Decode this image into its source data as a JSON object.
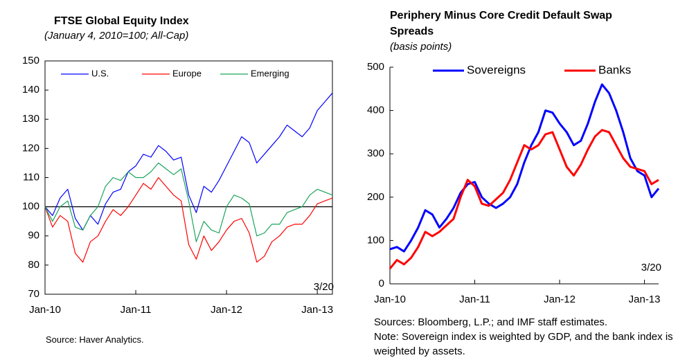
{
  "chart_data": [
    {
      "type": "line",
      "title": "FTSE Global Equity Index",
      "subtitle": "(January 4, 2010=100; All-Cap)",
      "categories": [
        "Jan-10",
        null,
        null,
        null,
        null,
        null,
        null,
        null,
        null,
        null,
        null,
        null,
        "Jan-11",
        null,
        null,
        null,
        null,
        null,
        null,
        null,
        null,
        null,
        null,
        null,
        "Jan-12",
        null,
        null,
        null,
        null,
        null,
        null,
        null,
        null,
        null,
        null,
        null,
        "Jan-13",
        null,
        null
      ],
      "series": [
        {
          "name": "U.S.",
          "color": "#0000ff",
          "values": [
            100,
            97,
            103,
            106,
            96,
            92,
            97,
            94,
            101,
            105,
            106,
            112,
            114,
            118,
            117,
            121,
            119,
            116,
            117,
            104,
            98,
            107,
            105,
            109,
            114,
            119,
            124,
            122,
            115,
            118,
            121,
            124,
            128,
            126,
            124,
            127,
            133,
            136,
            139
          ]
        },
        {
          "name": "Europe",
          "color": "#ff0000",
          "values": [
            100,
            93,
            97,
            95,
            84,
            81,
            88,
            90,
            95,
            99,
            97,
            100,
            104,
            108,
            106,
            110,
            107,
            104,
            102,
            87,
            82,
            90,
            85,
            88,
            92,
            95,
            96,
            91,
            81,
            83,
            88,
            90,
            93,
            94,
            94,
            97,
            101,
            102,
            103
          ]
        },
        {
          "name": "Emerging",
          "color": "#1aa35a",
          "values": [
            100,
            95,
            100,
            102,
            93,
            92,
            97,
            100,
            107,
            110,
            109,
            112,
            110,
            110,
            112,
            115,
            113,
            111,
            113,
            102,
            88,
            95,
            92,
            91,
            100,
            104,
            103,
            101,
            90,
            91,
            94,
            94,
            98,
            99,
            100,
            104,
            106,
            105,
            104
          ]
        }
      ],
      "ylim": [
        70,
        150
      ],
      "yticks": [
        70,
        80,
        90,
        100,
        110,
        120,
        130,
        140,
        150
      ],
      "reference_line": 100,
      "annotation": "3/20",
      "source": "Source: Haver Analytics."
    },
    {
      "type": "line",
      "title": "Periphery Minus Core Credit Default Swap Spreads",
      "subtitle": "(basis points)",
      "categories": [
        "Jan-10",
        null,
        null,
        null,
        null,
        null,
        null,
        null,
        null,
        null,
        null,
        null,
        "Jan-11",
        null,
        null,
        null,
        null,
        null,
        null,
        null,
        null,
        null,
        null,
        null,
        "Jan-12",
        null,
        null,
        null,
        null,
        null,
        null,
        null,
        null,
        null,
        null,
        null,
        "Jan-13",
        null,
        null
      ],
      "series": [
        {
          "name": "Sovereigns",
          "color": "#0000ff",
          "values": [
            80,
            85,
            75,
            100,
            130,
            170,
            160,
            130,
            150,
            175,
            210,
            230,
            235,
            200,
            185,
            175,
            185,
            200,
            230,
            280,
            320,
            350,
            400,
            395,
            370,
            350,
            320,
            330,
            370,
            420,
            460,
            440,
            400,
            350,
            290,
            260,
            250,
            200,
            220
          ]
        },
        {
          "name": "Banks",
          "color": "#ff0000",
          "values": [
            35,
            55,
            45,
            60,
            85,
            120,
            110,
            120,
            135,
            150,
            200,
            240,
            225,
            185,
            180,
            195,
            210,
            240,
            280,
            320,
            310,
            320,
            345,
            350,
            310,
            270,
            250,
            275,
            310,
            340,
            355,
            350,
            320,
            290,
            270,
            265,
            260,
            230,
            240
          ]
        }
      ],
      "ylim": [
        0,
        500
      ],
      "yticks": [
        0,
        100,
        200,
        300,
        400,
        500
      ],
      "annotation": "3/20",
      "notes": [
        "Sources: Bloomberg, L.P.; and IMF staff estimates.",
        "Note: Sovereign index is weighted by GDP, and the bank index is weighted by assets."
      ]
    }
  ]
}
